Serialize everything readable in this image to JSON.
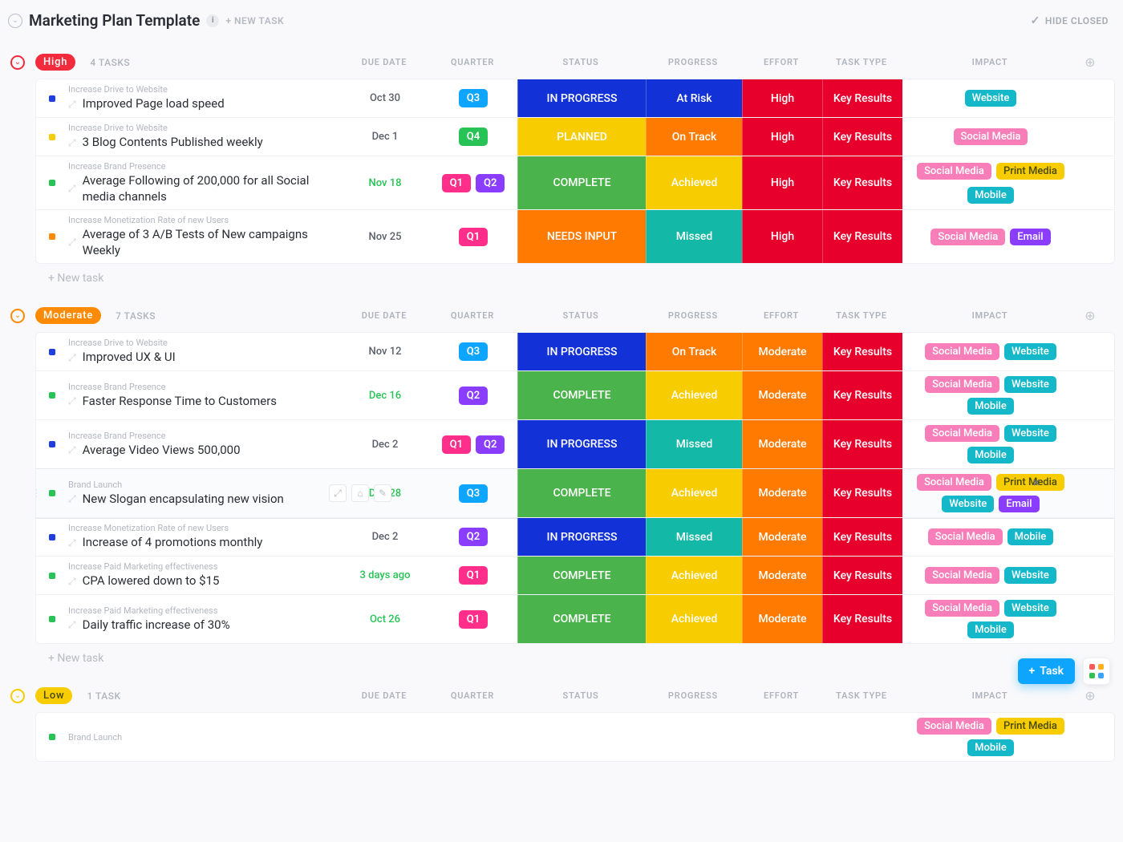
{
  "page_title": "Marketing Plan Template",
  "new_task_top_label": "+ NEW TASK",
  "hide_closed_label": "HIDE CLOSED",
  "columns": {
    "due_date": "DUE DATE",
    "quarter": "QUARTER",
    "status": "STATUS",
    "progress": "PROGRESS",
    "effort": "EFFORT",
    "task_type": "TASK TYPE",
    "impact": "IMPACT"
  },
  "new_task_row_label": "+ New task",
  "fab_task_label": "Task",
  "colors": {
    "priority": {
      "High": "#f22c3d",
      "Moderate": "#ff8b05",
      "Low": "#f7cc00"
    },
    "priority_ring": {
      "High": "#f22c3d",
      "Moderate": "#ff8b05",
      "Low": "#f7cc00"
    },
    "dots": {
      "blue": "#1f3de0",
      "yellow": "#f7cc00",
      "green": "#28c356",
      "orange": "#ff8b05",
      "purple": "#7c3aed"
    },
    "quarter": {
      "Q1": "#ff2e8a",
      "Q2": "#8b3dff",
      "Q3": "#0ea5ff",
      "Q4": "#28c356"
    },
    "status": {
      "IN PROGRESS": "#1231d6",
      "PLANNED": "#f7cc00",
      "COMPLETE": "#4bb34b",
      "NEEDS INPUT": "#ff7a00"
    },
    "progress": {
      "At Risk": "#1231d6",
      "On Track": "#ff7a00",
      "Achieved": "#f7cc00",
      "Missed": "#14b8a6"
    },
    "effort": {
      "High": "#e6002b",
      "Moderate": "#ff7a00"
    },
    "task_type": {
      "Key Results": "#e6002b"
    },
    "tags": {
      "Website": "#14b8c9",
      "Social Media": "#f77eb9",
      "Print Media": "#f7cc00",
      "Mobile": "#14b8c9",
      "Email": "#8b3dff"
    },
    "fab_apps": [
      "#ff5a5a",
      "#ffb020",
      "#30c04f",
      "#3aa3ff"
    ],
    "green_date": "#28c356"
  },
  "groups": [
    {
      "name": "High",
      "task_count_label": "4 TASKS",
      "tasks": [
        {
          "dot": "blue",
          "parent": "Increase Drive to Website",
          "title": "Improved Page load speed",
          "due": "Oct 30",
          "due_style": "grey",
          "quarters": [
            "Q3"
          ],
          "status": "IN PROGRESS",
          "progress": "At Risk",
          "effort": "High",
          "task_type": "Key Results",
          "tags": [
            "Website"
          ]
        },
        {
          "dot": "yellow",
          "parent": "Increase Drive to Website",
          "title": "3 Blog Contents Published weekly",
          "due": "Dec 1",
          "due_style": "grey",
          "quarters": [
            "Q4"
          ],
          "status": "PLANNED",
          "progress": "On Track",
          "effort": "High",
          "task_type": "Key Results",
          "tags": [
            "Social Media"
          ]
        },
        {
          "dot": "green",
          "parent": "Increase Brand Presence",
          "title": "Average Following of 200,000 for all Social media channels",
          "due": "Nov 18",
          "due_style": "green",
          "quarters": [
            "Q1",
            "Q2"
          ],
          "status": "COMPLETE",
          "progress": "Achieved",
          "effort": "High",
          "task_type": "Key Results",
          "tags": [
            "Social Media",
            "Print Media",
            "Mobile"
          ]
        },
        {
          "dot": "orange",
          "parent": "Increase Monetization Rate of new Users",
          "title": "Average of 3 A/B Tests of New campaigns Weekly",
          "due": "Nov 25",
          "due_style": "grey",
          "quarters": [
            "Q1"
          ],
          "status": "NEEDS INPUT",
          "progress": "Missed",
          "effort": "High",
          "task_type": "Key Results",
          "tags": [
            "Social Media",
            "Email"
          ]
        }
      ]
    },
    {
      "name": "Moderate",
      "task_count_label": "7 TASKS",
      "tasks": [
        {
          "dot": "blue",
          "parent": "Increase Drive to Website",
          "title": "Improved UX & UI",
          "due": "Nov 12",
          "due_style": "grey",
          "quarters": [
            "Q3"
          ],
          "status": "IN PROGRESS",
          "progress": "On Track",
          "effort": "Moderate",
          "task_type": "Key Results",
          "tags": [
            "Social Media",
            "Website"
          ]
        },
        {
          "dot": "green",
          "parent": "Increase Brand Presence",
          "title": "Faster Response Time to Customers",
          "due": "Dec 16",
          "due_style": "green",
          "quarters": [
            "Q2"
          ],
          "status": "COMPLETE",
          "progress": "Achieved",
          "effort": "Moderate",
          "task_type": "Key Results",
          "tags": [
            "Social Media",
            "Website",
            "Mobile"
          ]
        },
        {
          "dot": "blue",
          "parent": "Increase Brand Presence",
          "title": "Average Video Views 500,000",
          "due": "Dec 2",
          "due_style": "grey",
          "quarters": [
            "Q1",
            "Q2"
          ],
          "status": "IN PROGRESS",
          "progress": "Missed",
          "effort": "Moderate",
          "task_type": "Key Results",
          "tags": [
            "Social Media",
            "Website",
            "Mobile"
          ]
        },
        {
          "dot": "green",
          "selected": true,
          "parent": "Brand Launch",
          "title": "New Slogan encapsulating new vision",
          "due": "Dec 28",
          "due_style": "green",
          "quarters": [
            "Q3"
          ],
          "status": "COMPLETE",
          "progress": "Achieved",
          "effort": "Moderate",
          "task_type": "Key Results",
          "tags": [
            "Social Media",
            "Print Media",
            "Website",
            "Email"
          ],
          "show_tag_x": true,
          "show_actions": true
        },
        {
          "dot": "blue",
          "parent": "Increase Monetization Rate of new Users",
          "title": "Increase of 4 promotions monthly",
          "due": "Dec 2",
          "due_style": "grey",
          "quarters": [
            "Q2"
          ],
          "status": "IN PROGRESS",
          "progress": "Missed",
          "effort": "Moderate",
          "task_type": "Key Results",
          "tags": [
            "Social Media",
            "Mobile"
          ]
        },
        {
          "dot": "green",
          "parent": "Increase Paid Marketing effectiveness",
          "title": "CPA lowered down to $15",
          "due": "3 days ago",
          "due_style": "green",
          "quarters": [
            "Q1"
          ],
          "status": "COMPLETE",
          "progress": "Achieved",
          "effort": "Moderate",
          "task_type": "Key Results",
          "tags": [
            "Social Media",
            "Website"
          ]
        },
        {
          "dot": "green",
          "parent": "Increase Paid Marketing effectiveness",
          "title": "Daily traffic increase of 30%",
          "due": "Oct 26",
          "due_style": "green",
          "quarters": [
            "Q1"
          ],
          "status": "COMPLETE",
          "progress": "Achieved",
          "effort": "Moderate",
          "task_type": "Key Results",
          "tags": [
            "Social Media",
            "Website",
            "Mobile"
          ]
        }
      ]
    },
    {
      "name": "Low",
      "task_count_label": "1 TASK",
      "tasks": [
        {
          "dot": "green",
          "parent": "Brand Launch",
          "title": "",
          "due": "",
          "due_style": "grey",
          "quarters": [],
          "status": "",
          "progress": "",
          "effort": "",
          "task_type": "",
          "tags": [
            "Social Media",
            "Print Media",
            "Mobile"
          ],
          "partial": true
        }
      ]
    }
  ]
}
